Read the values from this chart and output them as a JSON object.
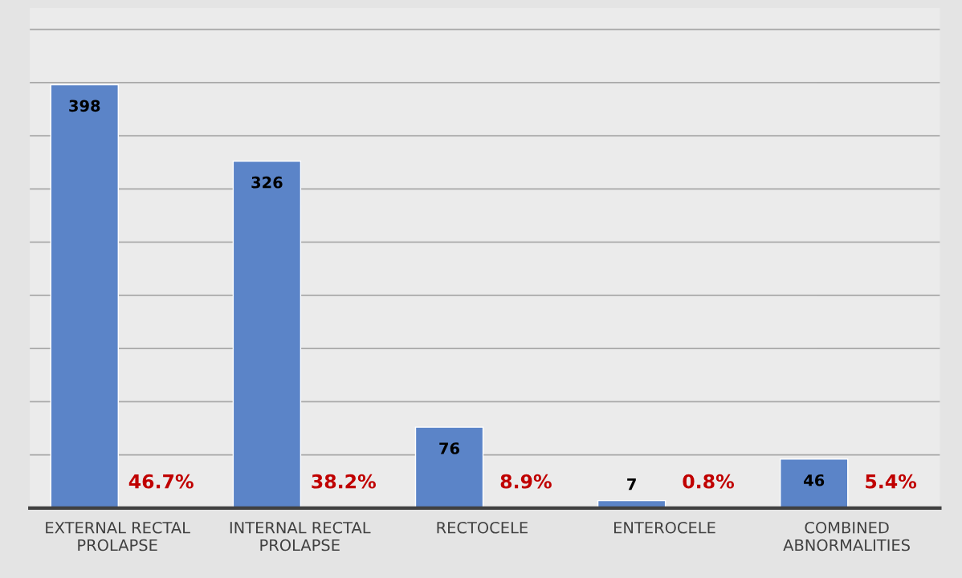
{
  "chart_data": {
    "type": "bar",
    "categories": [
      "EXTERNAL RECTAL\nPROLAPSE",
      "INTERNAL RECTAL\nPROLAPSE",
      "RECTOCELE",
      "ENTEROCELE",
      "COMBINED\nABNORMALITIES"
    ],
    "values": [
      398,
      326,
      76,
      7,
      46
    ],
    "color": "#5b84c8",
    "data_labels": true,
    "ylim": [
      0,
      470
    ],
    "yticks": [
      {
        "value": 0,
        "label": null
      },
      {
        "value": 50,
        "label": null
      },
      {
        "value": 100,
        "label": null
      },
      {
        "value": 150,
        "label": null
      },
      {
        "value": 200,
        "label": null
      },
      {
        "value": 250,
        "label": null
      },
      {
        "value": 300,
        "label": null
      },
      {
        "value": 350,
        "label": null
      },
      {
        "value": 400,
        "label": null
      },
      {
        "value": 450,
        "label": null
      }
    ],
    "grid": "y",
    "tick_labels": "x",
    "annotations": [
      "46.7%",
      "38.2%",
      "8.9%",
      "0.8%",
      "5.4%"
    ]
  }
}
